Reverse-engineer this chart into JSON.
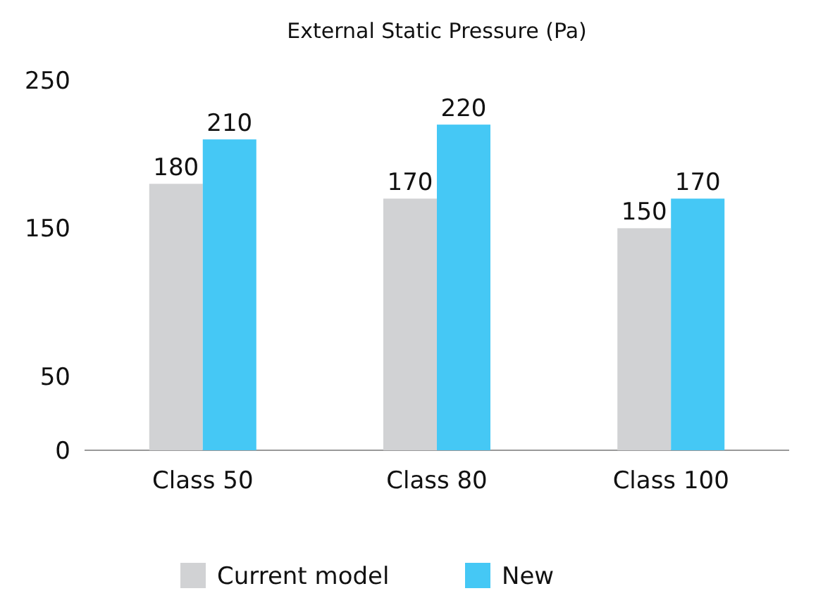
{
  "chart_data": {
    "type": "bar",
    "title": "External Static Pressure (Pa)",
    "categories": [
      "Class 50",
      "Class 80",
      "Class 100"
    ],
    "series": [
      {
        "name": "Current model",
        "color": "#d1d2d4",
        "values": [
          180,
          170,
          150
        ]
      },
      {
        "name": "New",
        "color": "#45c8f5",
        "values": [
          210,
          220,
          170
        ]
      }
    ],
    "ylim": [
      0,
      250
    ],
    "yticks": [
      0,
      50,
      150,
      250
    ],
    "data_labels": true,
    "legend": "bottom"
  }
}
